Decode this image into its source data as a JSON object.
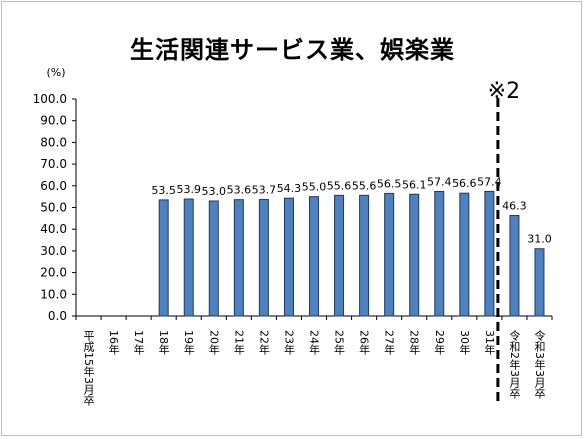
{
  "chart_data": {
    "type": "bar",
    "title": "生活関連サービス業、娯楽業",
    "ylabel": "(%)",
    "ylim": [
      0,
      100
    ],
    "ytick_step": 10,
    "ytick_labels": [
      "0.0",
      "10.0",
      "20.0",
      "30.0",
      "40.0",
      "50.0",
      "60.0",
      "70.0",
      "80.0",
      "90.0",
      "100.0"
    ],
    "categories": [
      "平成15年3月卒",
      "16年",
      "17年",
      "18年",
      "19年",
      "20年",
      "21年",
      "22年",
      "23年",
      "24年",
      "25年",
      "26年",
      "27年",
      "28年",
      "29年",
      "30年",
      "31年",
      "令和2年3月卒",
      "令和3年3月卒"
    ],
    "values": [
      null,
      null,
      null,
      53.5,
      53.9,
      53.0,
      53.6,
      53.7,
      54.3,
      55.0,
      55.6,
      55.6,
      56.5,
      56.1,
      57.4,
      56.6,
      57.4,
      46.3,
      31.0
    ],
    "data_labels": [
      "",
      "",
      "",
      "53.5",
      "53.9",
      "53.0",
      "53.6",
      "53.7",
      "54.3",
      "55.0",
      "55.6",
      "55.6",
      "56.5",
      "56.1",
      "57.4",
      "56.6",
      "57.4",
      "46.3",
      "31.0"
    ],
    "annotation": "※2",
    "bar_color": "#4f81bd",
    "bar_edge_color": "#1f3864"
  }
}
